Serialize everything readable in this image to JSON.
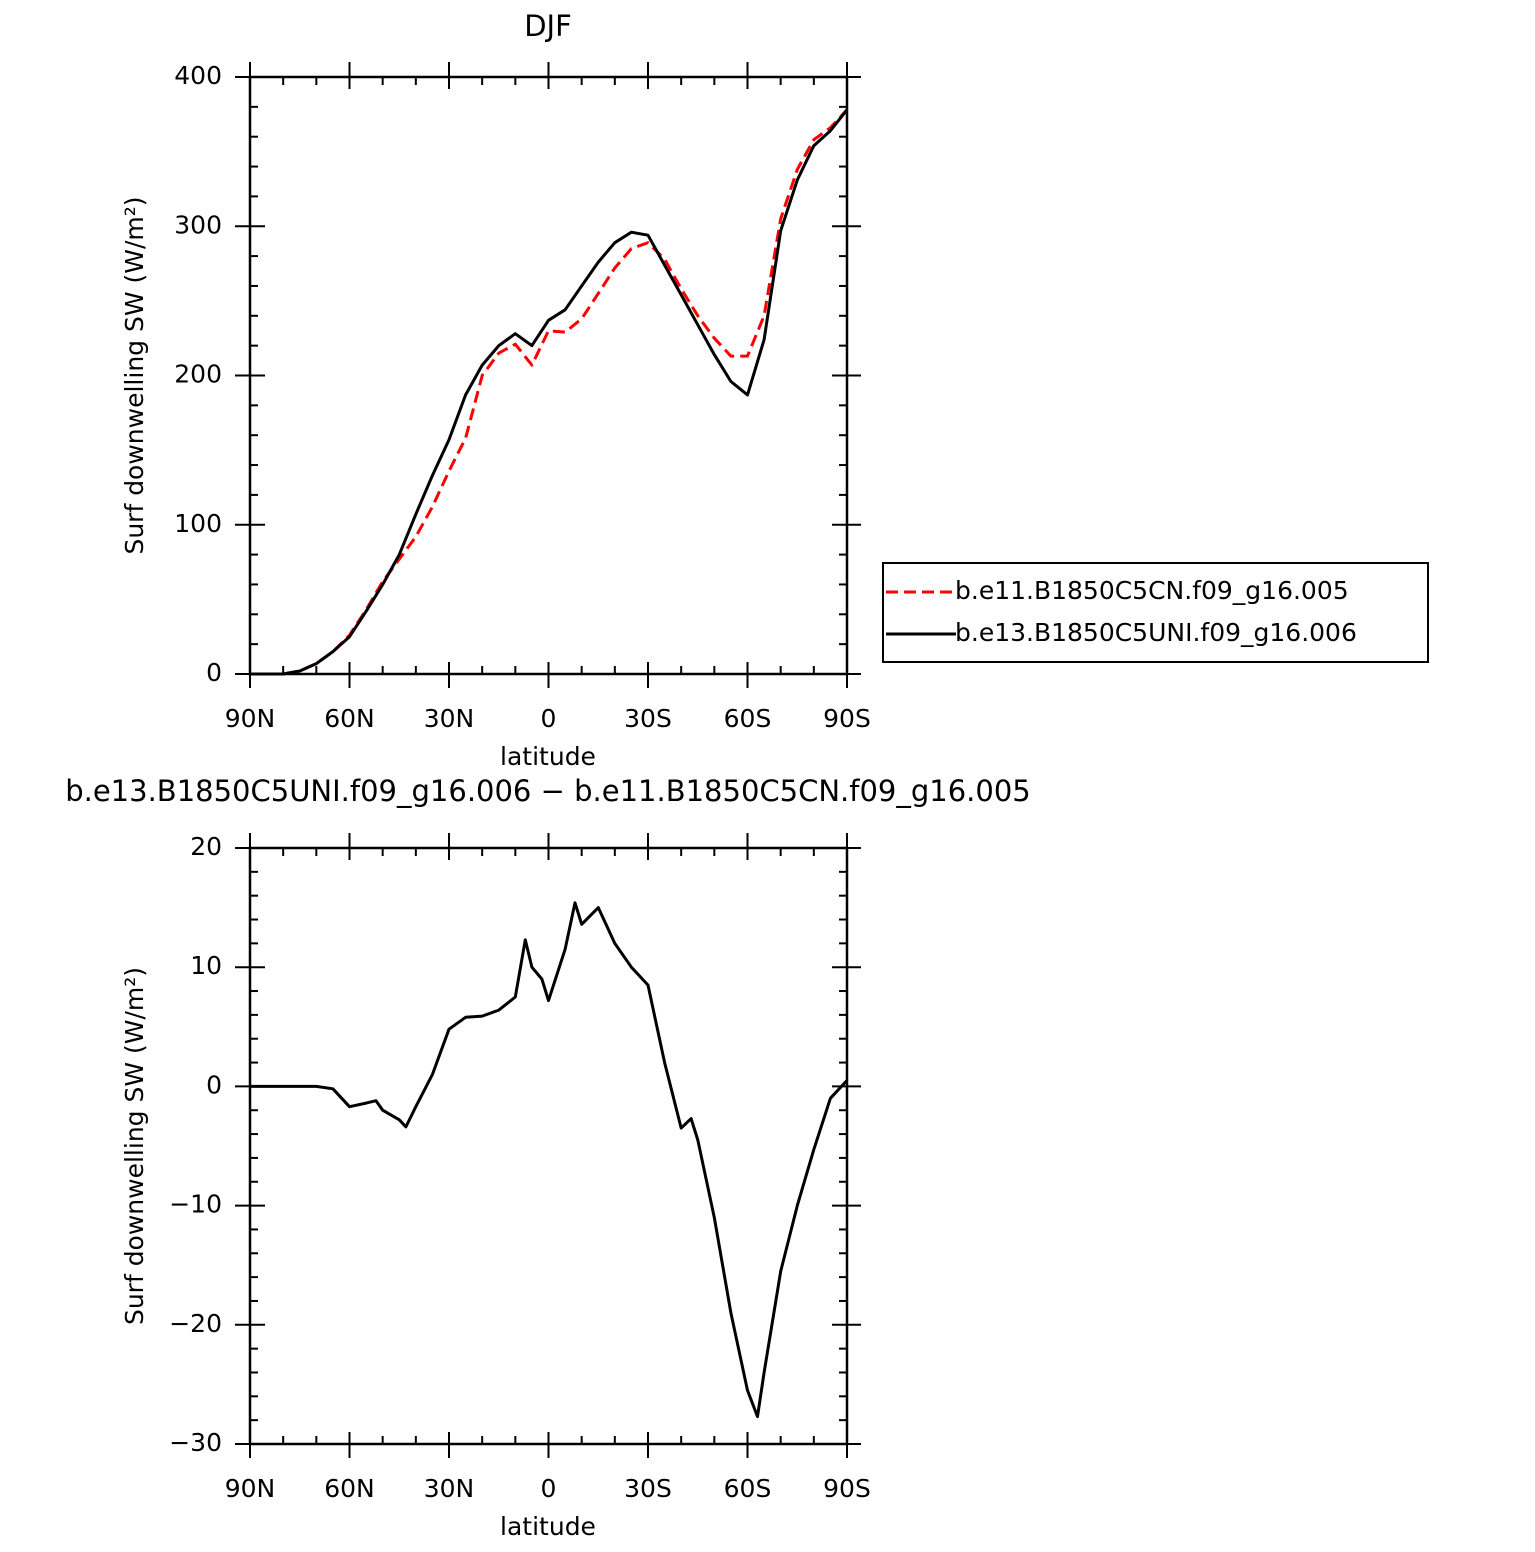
{
  "chart_data": [
    {
      "type": "line",
      "title": "DJF",
      "xlabel": "latitude",
      "ylabel": "Surf downwelling SW (W/m²)",
      "x": [
        90,
        85,
        80,
        75,
        70,
        65,
        60,
        55,
        50,
        45,
        40,
        35,
        30,
        25,
        20,
        15,
        10,
        5,
        0,
        -5,
        -10,
        -15,
        -20,
        -25,
        -30,
        -35,
        -40,
        -45,
        -50,
        -55,
        -60,
        -65,
        -70,
        -75,
        -80,
        -85,
        -90
      ],
      "xlim": [
        90,
        -90
      ],
      "xticks": [
        {
          "value": 90,
          "label": "90N"
        },
        {
          "value": 60,
          "label": "60N"
        },
        {
          "value": 30,
          "label": "30N"
        },
        0,
        {
          "value": -30,
          "label": "30S"
        },
        {
          "value": -60,
          "label": "60S"
        },
        {
          "value": -90,
          "label": "90S"
        }
      ],
      "ylim": [
        0,
        400
      ],
      "yticks": [
        0,
        100,
        200,
        300,
        400
      ],
      "legend": "right",
      "series": [
        {
          "name": "b.e11.B1850C5CN.f09_g16.005",
          "color": "#ff0000",
          "dash": true,
          "values": [
            0,
            0,
            0,
            2,
            7,
            15,
            26,
            43,
            62,
            77,
            92,
            112,
            136,
            158,
            200,
            215,
            221,
            207,
            230,
            229,
            238,
            255,
            272,
            285,
            289,
            278,
            258,
            240,
            225,
            213,
            213,
            240,
            305,
            338,
            358,
            366,
            378
          ]
        },
        {
          "name": "b.e13.B1850C5UNI.f09_g16.006",
          "color": "#000000",
          "dash": false,
          "values": [
            0,
            0,
            0,
            2,
            7,
            15,
            25,
            42,
            60,
            80,
            107,
            133,
            157,
            187,
            207,
            220,
            228,
            220,
            237,
            244,
            260,
            276,
            289,
            296,
            294,
            274,
            254,
            234,
            214,
            196,
            187,
            224,
            297,
            331,
            354,
            364,
            378
          ]
        }
      ]
    },
    {
      "type": "line",
      "title": "b.e13.B1850C5UNI.f09_g16.006 − b.e11.B1850C5CN.f09_g16.005",
      "xlabel": "latitude",
      "ylabel": "Surf downwelling SW (W/m²)",
      "x": [
        90,
        80,
        70,
        65,
        60,
        55,
        52,
        50,
        45,
        43,
        40,
        35,
        30,
        25,
        20,
        15,
        10,
        7,
        5,
        2,
        0,
        -5,
        -8,
        -10,
        -15,
        -20,
        -25,
        -30,
        -35,
        -40,
        -43,
        -45,
        -50,
        -55,
        -60,
        -63,
        -65,
        -70,
        -75,
        -80,
        -85,
        -90
      ],
      "xlim": [
        90,
        -90
      ],
      "xticks": [
        {
          "value": 90,
          "label": "90N"
        },
        {
          "value": 60,
          "label": "60N"
        },
        {
          "value": 30,
          "label": "30N"
        },
        0,
        {
          "value": -30,
          "label": "30S"
        },
        {
          "value": -60,
          "label": "60S"
        },
        {
          "value": -90,
          "label": "90S"
        }
      ],
      "ylim": [
        -30,
        20
      ],
      "yticks": [
        {
          "value": -30,
          "label": "−30"
        },
        {
          "value": -20,
          "label": "−20"
        },
        {
          "value": -10,
          "label": "−10"
        },
        0,
        10,
        20
      ],
      "series": [
        {
          "color": "#000000",
          "dash": false,
          "values": [
            0,
            0,
            0,
            -0.2,
            -1.7,
            -1.4,
            -1.2,
            -2.0,
            -2.8,
            -3.4,
            -1.7,
            1,
            4.8,
            5.8,
            5.9,
            6.4,
            7.5,
            12.3,
            10,
            9,
            7.2,
            11.5,
            15.4,
            13.6,
            15,
            12,
            10,
            8.5,
            2,
            -3.5,
            -2.7,
            -4.5,
            -11,
            -19,
            -25.5,
            -27.7,
            -24,
            -15.5,
            -10,
            -5.3,
            -1,
            0.5
          ]
        }
      ]
    }
  ]
}
